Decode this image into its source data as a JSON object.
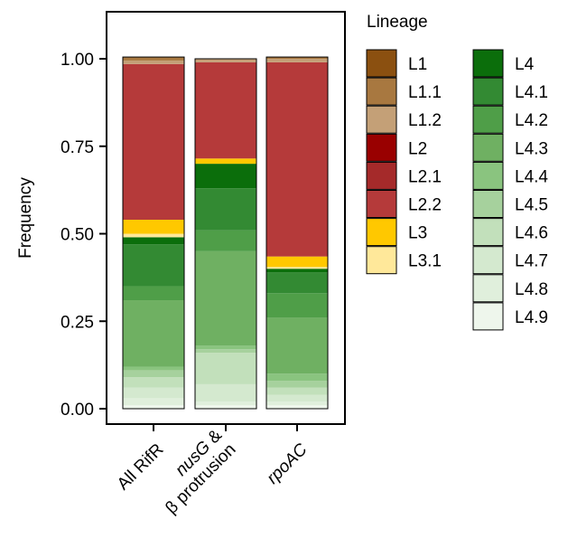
{
  "chart_data": {
    "type": "bar",
    "stacked": true,
    "ylabel": "Frequency",
    "ylim": [
      0,
      1.05
    ],
    "yticks": [
      "0.00",
      "0.25",
      "0.50",
      "0.75",
      "1.00"
    ],
    "ytick_values": [
      0,
      0.25,
      0.5,
      0.75,
      1.0
    ],
    "categories": [
      {
        "label": "All RifR",
        "parts": [
          {
            "text": "All RifR",
            "italic": false
          }
        ]
      },
      {
        "label": "nusG & β protrusion",
        "parts": [
          {
            "text": "nusG",
            "italic": true
          },
          {
            "text": " &",
            "italic": false
          },
          {
            "text": "β protrusion",
            "italic": false,
            "newline": true
          }
        ]
      },
      {
        "label": "rpoAC",
        "parts": [
          {
            "text": "rpoAC",
            "italic": true
          }
        ]
      }
    ],
    "legend": {
      "title": "Lineage",
      "placement": "right"
    },
    "series": [
      {
        "name": "L4.9",
        "color": "#eef6ec",
        "values": [
          0.01,
          0.01,
          0.01
        ]
      },
      {
        "name": "L4.8",
        "color": "#e0efdc",
        "values": [
          0.02,
          0.01,
          0.01
        ]
      },
      {
        "name": "L4.7",
        "color": "#d4e9cf",
        "values": [
          0.03,
          0.05,
          0.02
        ]
      },
      {
        "name": "L4.6",
        "color": "#c2e0bb",
        "values": [
          0.03,
          0.09,
          0.02
        ]
      },
      {
        "name": "L4.5",
        "color": "#a6d19d",
        "values": [
          0.02,
          0.01,
          0.02
        ]
      },
      {
        "name": "L4.4",
        "color": "#8ac47f",
        "values": [
          0.01,
          0.01,
          0.02
        ]
      },
      {
        "name": "L4.3",
        "color": "#6fb062",
        "values": [
          0.19,
          0.27,
          0.16
        ]
      },
      {
        "name": "L4.2",
        "color": "#4f9e48",
        "values": [
          0.04,
          0.06,
          0.07
        ]
      },
      {
        "name": "L4.1",
        "color": "#338a33",
        "values": [
          0.12,
          0.12,
          0.06
        ]
      },
      {
        "name": "L4",
        "color": "#0b6e0b",
        "values": [
          0.02,
          0.07,
          0.01
        ]
      },
      {
        "name": "L3.1",
        "color": "#ffe89a",
        "values": [
          0.01,
          0.0,
          0.005
        ]
      },
      {
        "name": "L3",
        "color": "#ffc800",
        "values": [
          0.04,
          0.015,
          0.03
        ]
      },
      {
        "name": "L2.2",
        "color": "#b53a3a",
        "values": [
          0.445,
          0.275,
          0.555
        ]
      },
      {
        "name": "L2.1",
        "color": "#a52a2a",
        "values": [
          0.0,
          0.0,
          0.0
        ]
      },
      {
        "name": "L2",
        "color": "#990000",
        "values": [
          0.0,
          0.0,
          0.0
        ]
      },
      {
        "name": "L1.2",
        "color": "#c4a077",
        "values": [
          0.01,
          0.01,
          0.01
        ]
      },
      {
        "name": "L1.1",
        "color": "#a87840",
        "values": [
          0.01,
          0.0,
          0.005
        ]
      },
      {
        "name": "L1",
        "color": "#8b5010",
        "values": [
          0.0,
          0.0,
          0.0
        ]
      }
    ],
    "legend_order": [
      "L1",
      "L1.1",
      "L1.2",
      "L2",
      "L2.1",
      "L2.2",
      "L3",
      "L3.1",
      "L4",
      "L4.1",
      "L4.2",
      "L4.3",
      "L4.4",
      "L4.5",
      "L4.6",
      "L4.7",
      "L4.8",
      "L4.9"
    ]
  }
}
